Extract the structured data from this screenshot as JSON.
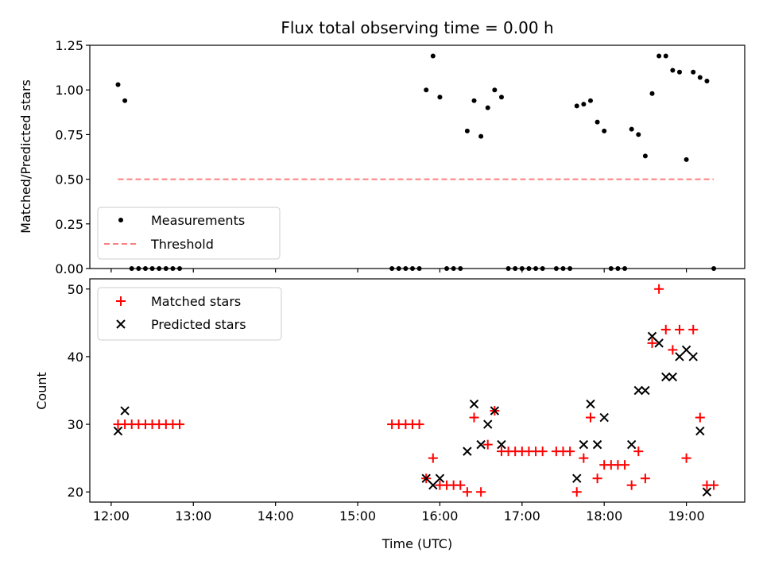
{
  "chart_data": [
    {
      "type": "scatter",
      "title": "Flux total observing time = 0.00 h",
      "xlabel": "",
      "ylabel": "Matched/Predicted stars",
      "ylim": [
        0,
        1.25
      ],
      "yticks": [
        "0.00",
        "0.25",
        "0.50",
        "0.75",
        "1.00",
        "1.25"
      ],
      "legend": "lower-left",
      "series": [
        {
          "name": "Measurements",
          "color": "#000000",
          "marker": "dot",
          "points": [
            [
              "12:05",
              1.03
            ],
            [
              "12:10",
              0.94
            ],
            [
              "12:15",
              0
            ],
            [
              "12:20",
              0
            ],
            [
              "12:25",
              0
            ],
            [
              "12:30",
              0
            ],
            [
              "12:35",
              0
            ],
            [
              "12:40",
              0
            ],
            [
              "12:45",
              0
            ],
            [
              "12:50",
              0
            ],
            [
              "15:25",
              0
            ],
            [
              "15:30",
              0
            ],
            [
              "15:35",
              0
            ],
            [
              "15:40",
              0
            ],
            [
              "15:45",
              0
            ],
            [
              "15:50",
              1.0
            ],
            [
              "15:55",
              1.19
            ],
            [
              "16:00",
              0.96
            ],
            [
              "16:05",
              0
            ],
            [
              "16:10",
              0
            ],
            [
              "16:15",
              0
            ],
            [
              "16:20",
              0.77
            ],
            [
              "16:25",
              0.94
            ],
            [
              "16:30",
              0.74
            ],
            [
              "16:35",
              0.9
            ],
            [
              "16:40",
              1.0
            ],
            [
              "16:45",
              0.96
            ],
            [
              "16:50",
              0
            ],
            [
              "16:55",
              0
            ],
            [
              "17:00",
              0
            ],
            [
              "17:05",
              0
            ],
            [
              "17:10",
              0
            ],
            [
              "17:15",
              0
            ],
            [
              "17:25",
              0
            ],
            [
              "17:30",
              0
            ],
            [
              "17:35",
              0
            ],
            [
              "17:40",
              0.91
            ],
            [
              "17:45",
              0.92
            ],
            [
              "17:50",
              0.94
            ],
            [
              "17:55",
              0.82
            ],
            [
              "18:00",
              0.77
            ],
            [
              "18:05",
              0
            ],
            [
              "18:10",
              0
            ],
            [
              "18:15",
              0
            ],
            [
              "18:20",
              0.78
            ],
            [
              "18:25",
              0.75
            ],
            [
              "18:30",
              0.63
            ],
            [
              "18:35",
              0.98
            ],
            [
              "18:40",
              1.19
            ],
            [
              "18:45",
              1.19
            ],
            [
              "18:50",
              1.11
            ],
            [
              "18:55",
              1.1
            ],
            [
              "19:00",
              0.61
            ],
            [
              "19:05",
              1.1
            ],
            [
              "19:10",
              1.07
            ],
            [
              "19:15",
              1.05
            ],
            [
              "19:20",
              0
            ]
          ]
        },
        {
          "name": "Threshold",
          "color": "#ff7f7f",
          "marker": "dashed-line",
          "points": [
            [
              "12:05",
              0.5
            ],
            [
              "19:20",
              0.5
            ]
          ]
        }
      ]
    },
    {
      "type": "scatter",
      "title": "",
      "xlabel": "Time (UTC)",
      "ylabel": "Count",
      "ylim": [
        18.5,
        51.5
      ],
      "yticks": [
        "20",
        "30",
        "40",
        "50"
      ],
      "xticks": [
        "12:00",
        "13:00",
        "14:00",
        "15:00",
        "16:00",
        "17:00",
        "18:00",
        "19:00"
      ],
      "legend": "upper-left",
      "series": [
        {
          "name": "Matched stars",
          "color": "#ff0000",
          "marker": "plus",
          "points": [
            [
              "12:05",
              30
            ],
            [
              "12:10",
              30
            ],
            [
              "12:15",
              30
            ],
            [
              "12:20",
              30
            ],
            [
              "12:25",
              30
            ],
            [
              "12:30",
              30
            ],
            [
              "12:35",
              30
            ],
            [
              "12:40",
              30
            ],
            [
              "12:45",
              30
            ],
            [
              "12:50",
              30
            ],
            [
              "15:25",
              30
            ],
            [
              "15:30",
              30
            ],
            [
              "15:35",
              30
            ],
            [
              "15:40",
              30
            ],
            [
              "15:45",
              30
            ],
            [
              "15:50",
              22
            ],
            [
              "15:55",
              25
            ],
            [
              "16:00",
              21
            ],
            [
              "16:05",
              21
            ],
            [
              "16:10",
              21
            ],
            [
              "16:15",
              21
            ],
            [
              "16:20",
              20
            ],
            [
              "16:25",
              31
            ],
            [
              "16:30",
              20
            ],
            [
              "16:35",
              27
            ],
            [
              "16:40",
              32
            ],
            [
              "16:45",
              26
            ],
            [
              "16:50",
              26
            ],
            [
              "16:55",
              26
            ],
            [
              "17:00",
              26
            ],
            [
              "17:05",
              26
            ],
            [
              "17:10",
              26
            ],
            [
              "17:15",
              26
            ],
            [
              "17:25",
              26
            ],
            [
              "17:30",
              26
            ],
            [
              "17:35",
              26
            ],
            [
              "17:40",
              20
            ],
            [
              "17:45",
              25
            ],
            [
              "17:50",
              31
            ],
            [
              "17:55",
              22
            ],
            [
              "18:00",
              24
            ],
            [
              "18:05",
              24
            ],
            [
              "18:10",
              24
            ],
            [
              "18:15",
              24
            ],
            [
              "18:20",
              21
            ],
            [
              "18:25",
              26
            ],
            [
              "18:30",
              22
            ],
            [
              "18:35",
              42
            ],
            [
              "18:40",
              50
            ],
            [
              "18:45",
              44
            ],
            [
              "18:50",
              41
            ],
            [
              "18:55",
              44
            ],
            [
              "19:00",
              25
            ],
            [
              "19:05",
              44
            ],
            [
              "19:10",
              31
            ],
            [
              "19:15",
              21
            ],
            [
              "19:20",
              21
            ]
          ]
        },
        {
          "name": "Predicted stars",
          "color": "#000000",
          "marker": "x",
          "points": [
            [
              "12:05",
              29
            ],
            [
              "12:10",
              32
            ],
            [
              "15:50",
              22
            ],
            [
              "15:55",
              21
            ],
            [
              "16:00",
              22
            ],
            [
              "16:20",
              26
            ],
            [
              "16:25",
              33
            ],
            [
              "16:30",
              27
            ],
            [
              "16:35",
              30
            ],
            [
              "16:40",
              32
            ],
            [
              "16:45",
              27
            ],
            [
              "17:40",
              22
            ],
            [
              "17:45",
              27
            ],
            [
              "17:50",
              33
            ],
            [
              "17:55",
              27
            ],
            [
              "18:00",
              31
            ],
            [
              "18:20",
              27
            ],
            [
              "18:25",
              35
            ],
            [
              "18:30",
              35
            ],
            [
              "18:35",
              43
            ],
            [
              "18:40",
              42
            ],
            [
              "18:45",
              37
            ],
            [
              "18:50",
              37
            ],
            [
              "18:55",
              40
            ],
            [
              "19:00",
              41
            ],
            [
              "19:05",
              40
            ],
            [
              "19:10",
              29
            ],
            [
              "19:15",
              20
            ]
          ]
        }
      ]
    }
  ]
}
